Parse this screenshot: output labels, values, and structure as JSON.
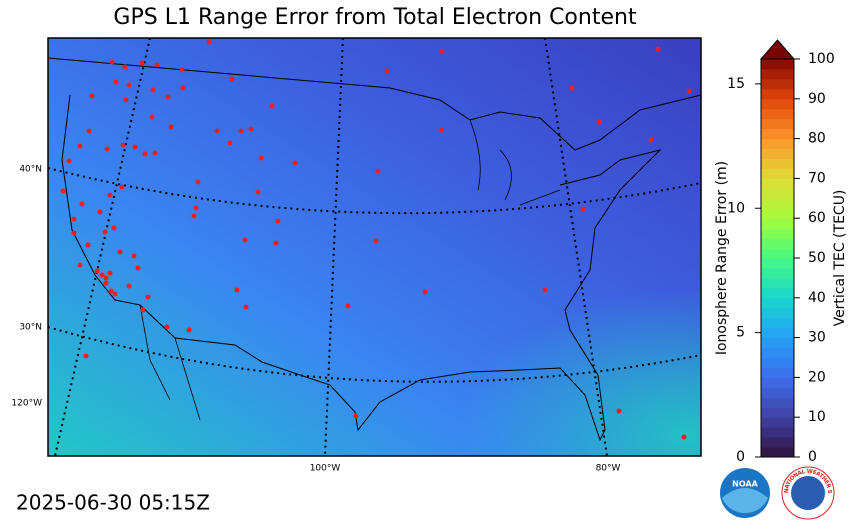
{
  "title": "GPS L1 Range Error from Total Electron Content",
  "map": {
    "lat_labels": [
      "40°N",
      "30°N"
    ],
    "lon_labels": [
      "120°W",
      "100°W",
      "80°W"
    ]
  },
  "colorbar": {
    "left_label": "Ionosphere Range Error (m)",
    "left_lim": [
      0,
      16
    ],
    "left_ticks": [
      0,
      5,
      10,
      15
    ],
    "right_label": "Vertical TEC (TECU)",
    "right_lim": [
      0,
      100
    ],
    "right_ticks": [
      0,
      10,
      20,
      30,
      40,
      50,
      60,
      70,
      80,
      90,
      100
    ]
  },
  "timestamp": "2025-06-30 05:15Z",
  "logos": {
    "noaa": "NOAA",
    "nws": "NATIONAL WEATHER SERVICE"
  }
}
